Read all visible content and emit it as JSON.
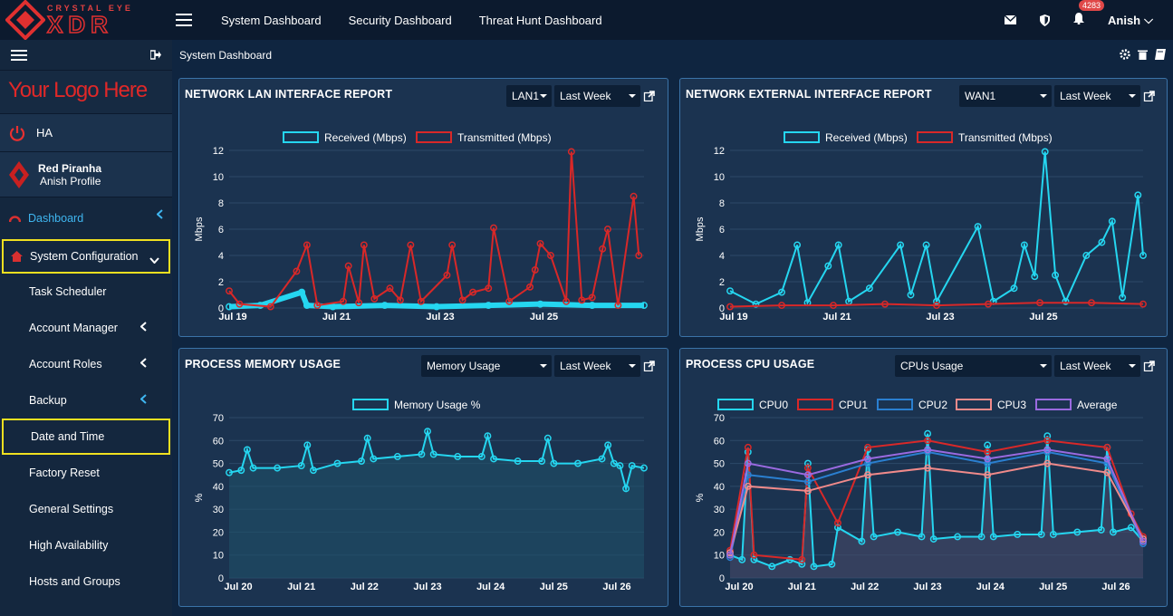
{
  "brand": {
    "tagline": "CRYSTAL EYE",
    "name": "XDR"
  },
  "topnav": [
    "System Dashboard",
    "Security Dashboard",
    "Threat Hunt Dashboard"
  ],
  "notifications": "4283",
  "user": "Anish",
  "sidebar": {
    "logo": "Your Logo Here",
    "ha": "HA",
    "profile": {
      "name": "Red Piranha",
      "sub": "Anish Profile"
    },
    "dashboard": "Dashboard",
    "system_configuration": "System Configuration",
    "items": [
      "Task Scheduler",
      "Account Manager",
      "Account Roles",
      "Backup",
      "Date and Time",
      "Factory Reset",
      "General Settings",
      "High Availability",
      "Hosts and Groups"
    ]
  },
  "breadcrumb": "System Dashboard",
  "panels": {
    "lan": {
      "title": "NETWORK LAN INTERFACE REPORT",
      "select1": "LAN1",
      "select2": "Last Week"
    },
    "ext": {
      "title": "NETWORK EXTERNAL INTERFACE REPORT",
      "select1": "WAN1",
      "select2": "Last Week"
    },
    "mem": {
      "title": "PROCESS MEMORY USAGE",
      "select1": "Memory Usage",
      "select2": "Last Week"
    },
    "cpu": {
      "title": "PROCESS CPU USAGE",
      "select1": "CPUs Usage",
      "select2": "Last Week"
    }
  },
  "colors": {
    "received": "#25d6f0",
    "transmitted": "#d82828",
    "cpu0": "#25d6f0",
    "cpu1": "#d82828",
    "cpu2": "#2a7fd0",
    "cpu3": "#f08a8a",
    "average": "#9a6ae0"
  },
  "chart_data": [
    {
      "type": "line",
      "legend": [
        "Received (Mbps)",
        "Transmitted (Mbps)"
      ],
      "ylabel": "Mbps",
      "ylim": [
        0,
        12
      ],
      "yticks": [
        0,
        2,
        4,
        6,
        8,
        10,
        12
      ],
      "xticks": [
        "Jul 19",
        "Jul 21",
        "Jul 23",
        "Jul 25"
      ],
      "x_range": [
        19,
        27
      ],
      "series": [
        {
          "name": "Received (Mbps)",
          "values": [
            [
              19,
              0.1
            ],
            [
              19.6,
              0.2
            ],
            [
              20.4,
              1.2
            ],
            [
              20.5,
              0.2
            ],
            [
              21,
              0.1
            ],
            [
              22,
              0.2
            ],
            [
              23,
              0.1
            ],
            [
              24,
              0.2
            ],
            [
              25,
              0.3
            ],
            [
              26,
              0.2
            ],
            [
              27,
              0.2
            ]
          ]
        },
        {
          "name": "Transmitted (Mbps)",
          "values": [
            [
              19,
              1.3
            ],
            [
              19.2,
              0.3
            ],
            [
              19.8,
              0.1
            ],
            [
              20.3,
              2.8
            ],
            [
              20.5,
              4.8
            ],
            [
              20.7,
              0.2
            ],
            [
              21.2,
              0.5
            ],
            [
              21.3,
              3.2
            ],
            [
              21.5,
              0.4
            ],
            [
              21.6,
              4.8
            ],
            [
              21.8,
              0.7
            ],
            [
              22.1,
              1.5
            ],
            [
              22.3,
              0.6
            ],
            [
              22.5,
              4.8
            ],
            [
              22.7,
              0.5
            ],
            [
              23.2,
              2.5
            ],
            [
              23.3,
              4.8
            ],
            [
              23.5,
              0.6
            ],
            [
              23.7,
              1.2
            ],
            [
              24,
              1.5
            ],
            [
              24.1,
              6.1
            ],
            [
              24.4,
              0.5
            ],
            [
              24.8,
              1.6
            ],
            [
              24.9,
              2.9
            ],
            [
              25,
              4.9
            ],
            [
              25.2,
              4
            ],
            [
              25.5,
              0.5
            ],
            [
              25.6,
              11.9
            ],
            [
              25.8,
              0.6
            ],
            [
              26,
              0.8
            ],
            [
              26.2,
              4.5
            ],
            [
              26.3,
              6.0
            ],
            [
              26.5,
              0.2
            ],
            [
              26.8,
              8.5
            ],
            [
              26.9,
              4
            ]
          ]
        }
      ]
    },
    {
      "type": "line",
      "legend": [
        "Received (Mbps)",
        "Transmitted (Mbps)"
      ],
      "ylabel": "Mbps",
      "ylim": [
        0,
        12
      ],
      "yticks": [
        0,
        2,
        4,
        6,
        8,
        10,
        12
      ],
      "xticks": [
        "Jul 19",
        "Jul 21",
        "Jul 23",
        "Jul 25"
      ],
      "x_range": [
        19,
        27
      ],
      "series": [
        {
          "name": "Received (Mbps)",
          "values": [
            [
              19,
              1.3
            ],
            [
              19.5,
              0.3
            ],
            [
              20,
              1.2
            ],
            [
              20.3,
              4.8
            ],
            [
              20.5,
              0.4
            ],
            [
              20.9,
              3.2
            ],
            [
              21.1,
              4.8
            ],
            [
              21.3,
              0.5
            ],
            [
              21.7,
              1.5
            ],
            [
              22.3,
              4.8
            ],
            [
              22.5,
              1.0
            ],
            [
              22.8,
              4.8
            ],
            [
              23,
              0.5
            ],
            [
              23.8,
              6.2
            ],
            [
              24.1,
              0.5
            ],
            [
              24.5,
              1.5
            ],
            [
              24.7,
              4.8
            ],
            [
              24.9,
              2.4
            ],
            [
              25.1,
              11.9
            ],
            [
              25.3,
              2.5
            ],
            [
              25.5,
              0.5
            ],
            [
              25.9,
              4.0
            ],
            [
              26.2,
              5.0
            ],
            [
              26.4,
              6.6
            ],
            [
              26.6,
              0.8
            ],
            [
              26.9,
              8.6
            ],
            [
              27,
              4.0
            ]
          ]
        },
        {
          "name": "Transmitted (Mbps)",
          "values": [
            [
              19,
              0.1
            ],
            [
              20,
              0.2
            ],
            [
              21,
              0.2
            ],
            [
              22,
              0.3
            ],
            [
              23,
              0.2
            ],
            [
              24,
              0.3
            ],
            [
              25,
              0.4
            ],
            [
              26,
              0.4
            ],
            [
              27,
              0.3
            ]
          ]
        }
      ]
    },
    {
      "type": "area",
      "legend": [
        "Memory Usage %"
      ],
      "ylabel": "%",
      "ylim": [
        0,
        70
      ],
      "yticks": [
        0,
        10,
        20,
        30,
        40,
        50,
        60,
        70
      ],
      "xticks": [
        "Jul 20",
        "Jul 21",
        "Jul 22",
        "Jul 23",
        "Jul 24",
        "Jul 25",
        "Jul 26"
      ],
      "x_range": [
        19.8,
        26.7
      ],
      "series": [
        {
          "name": "Memory Usage %",
          "values": [
            [
              19.8,
              46
            ],
            [
              20,
              47
            ],
            [
              20.1,
              56
            ],
            [
              20.2,
              48
            ],
            [
              20.6,
              48
            ],
            [
              21,
              49
            ],
            [
              21.1,
              58
            ],
            [
              21.2,
              47
            ],
            [
              21.6,
              50
            ],
            [
              22,
              51
            ],
            [
              22.1,
              61
            ],
            [
              22.2,
              52
            ],
            [
              22.6,
              53
            ],
            [
              23,
              54
            ],
            [
              23.1,
              64
            ],
            [
              23.2,
              54
            ],
            [
              23.6,
              53
            ],
            [
              24,
              53
            ],
            [
              24.1,
              62
            ],
            [
              24.2,
              52
            ],
            [
              24.6,
              51
            ],
            [
              25,
              51
            ],
            [
              25.1,
              61
            ],
            [
              25.2,
              50
            ],
            [
              25.6,
              50
            ],
            [
              26,
              52
            ],
            [
              26.1,
              58
            ],
            [
              26.2,
              50
            ],
            [
              26.3,
              49
            ],
            [
              26.4,
              39
            ],
            [
              26.5,
              49
            ],
            [
              26.7,
              48
            ]
          ]
        }
      ]
    },
    {
      "type": "area",
      "legend": [
        "CPU0",
        "CPU1",
        "CPU2",
        "CPU3",
        "Average"
      ],
      "ylabel": "%",
      "ylim": [
        0,
        70
      ],
      "yticks": [
        0,
        10,
        20,
        30,
        40,
        50,
        60,
        70
      ],
      "xticks": [
        "Jul 20",
        "Jul 21",
        "Jul 22",
        "Jul 23",
        "Jul 24",
        "Jul 25",
        "Jul 26"
      ],
      "x_range": [
        19.8,
        26.7
      ],
      "series": [
        {
          "name": "CPU0",
          "values": [
            [
              19.8,
              10
            ],
            [
              20,
              8
            ],
            [
              20.1,
              55
            ],
            [
              20.2,
              8
            ],
            [
              20.5,
              5
            ],
            [
              20.8,
              8
            ],
            [
              21,
              6
            ],
            [
              21.1,
              50
            ],
            [
              21.2,
              5
            ],
            [
              21.5,
              6
            ],
            [
              21.6,
              22
            ],
            [
              22,
              16
            ],
            [
              22.1,
              56
            ],
            [
              22.2,
              18
            ],
            [
              22.6,
              20
            ],
            [
              23,
              18
            ],
            [
              23.1,
              63
            ],
            [
              23.2,
              17
            ],
            [
              23.6,
              18
            ],
            [
              24,
              18
            ],
            [
              24.1,
              58
            ],
            [
              24.2,
              18
            ],
            [
              24.6,
              19
            ],
            [
              25,
              19
            ],
            [
              25.1,
              62
            ],
            [
              25.2,
              19
            ],
            [
              25.6,
              20
            ],
            [
              26,
              21
            ],
            [
              26.1,
              57
            ],
            [
              26.2,
              20
            ],
            [
              26.5,
              22
            ],
            [
              26.7,
              16
            ]
          ]
        },
        {
          "name": "CPU1",
          "values": [
            [
              19.8,
              12
            ],
            [
              20.1,
              57
            ],
            [
              20.2,
              10
            ],
            [
              21,
              8
            ],
            [
              21.1,
              48
            ],
            [
              21.6,
              24
            ],
            [
              22.1,
              57
            ],
            [
              23.1,
              60
            ],
            [
              24.1,
              55
            ],
            [
              25.1,
              60
            ],
            [
              26.1,
              57
            ],
            [
              26.5,
              28
            ],
            [
              26.7,
              18
            ]
          ]
        },
        {
          "name": "CPU2",
          "values": [
            [
              19.8,
              9
            ],
            [
              20.1,
              45
            ],
            [
              21.1,
              42
            ],
            [
              22.1,
              50
            ],
            [
              23.1,
              55
            ],
            [
              24.1,
              50
            ],
            [
              25.1,
              55
            ],
            [
              26.1,
              50
            ],
            [
              26.7,
              15
            ]
          ]
        },
        {
          "name": "CPU3",
          "values": [
            [
              19.8,
              11
            ],
            [
              20.1,
              40
            ],
            [
              21.1,
              38
            ],
            [
              22.1,
              45
            ],
            [
              23.1,
              48
            ],
            [
              24.1,
              45
            ],
            [
              25.1,
              50
            ],
            [
              26.1,
              46
            ],
            [
              26.7,
              17
            ]
          ]
        },
        {
          "name": "Average",
          "values": [
            [
              19.8,
              10
            ],
            [
              20.1,
              50
            ],
            [
              21.1,
              45
            ],
            [
              22.1,
              52
            ],
            [
              23.1,
              56
            ],
            [
              24.1,
              52
            ],
            [
              25.1,
              56
            ],
            [
              26.1,
              52
            ],
            [
              26.7,
              16
            ]
          ]
        }
      ]
    }
  ]
}
